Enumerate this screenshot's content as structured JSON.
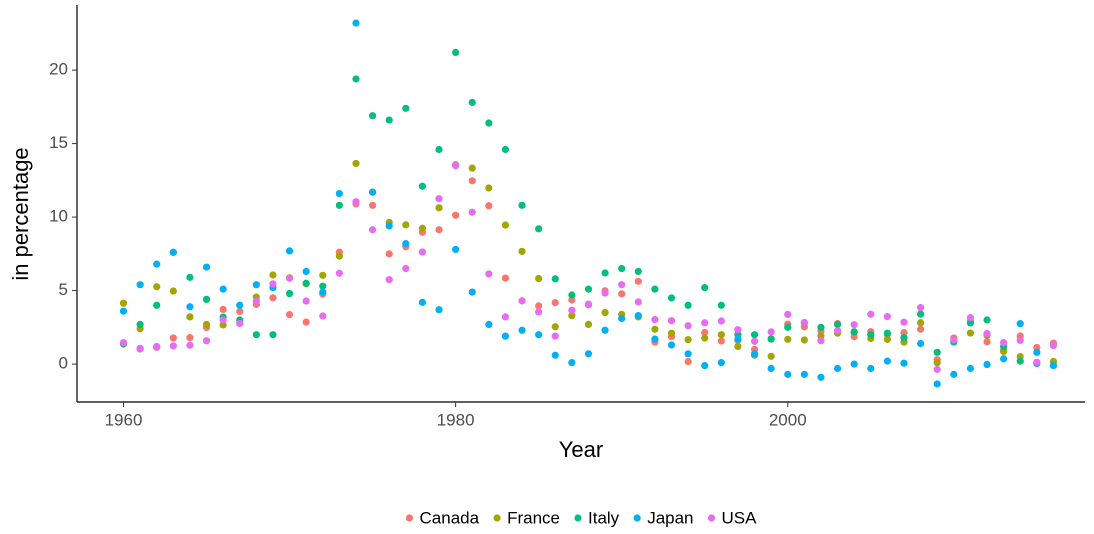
{
  "chart_data": {
    "type": "scatter",
    "xlabel": "Year",
    "ylabel": "in percentage",
    "x": [
      1960,
      1961,
      1962,
      1963,
      1964,
      1965,
      1966,
      1967,
      1968,
      1969,
      1970,
      1971,
      1972,
      1973,
      1974,
      1975,
      1976,
      1977,
      1978,
      1979,
      1980,
      1981,
      1982,
      1983,
      1984,
      1985,
      1986,
      1987,
      1988,
      1989,
      1990,
      1991,
      1992,
      1993,
      1994,
      1995,
      1996,
      1997,
      1998,
      1999,
      2000,
      2001,
      2002,
      2003,
      2004,
      2005,
      2006,
      2007,
      2008,
      2009,
      2010,
      2011,
      2012,
      2013,
      2014,
      2015,
      2016
    ],
    "series": [
      {
        "name": "Canada",
        "color": "#F8766D",
        "values": [
          1.36,
          1.02,
          1.14,
          1.78,
          1.8,
          2.49,
          3.72,
          3.58,
          4.06,
          4.51,
          3.37,
          2.86,
          4.76,
          7.62,
          10.9,
          10.8,
          7.5,
          7.98,
          8.97,
          9.14,
          10.13,
          12.47,
          10.77,
          5.85,
          4.3,
          3.96,
          4.18,
          4.36,
          4.03,
          4.99,
          4.78,
          5.63,
          1.49,
          1.87,
          0.17,
          2.15,
          1.57,
          1.62,
          1.0,
          1.73,
          2.72,
          2.53,
          2.26,
          2.76,
          1.86,
          2.21,
          2.0,
          2.14,
          2.37,
          0.3,
          1.78,
          2.91,
          1.52,
          0.94,
          1.91,
          1.13,
          1.43
        ]
      },
      {
        "name": "France",
        "color": "#A3A500",
        "values": [
          4.14,
          2.4,
          5.26,
          4.97,
          3.21,
          2.7,
          2.66,
          2.77,
          4.56,
          6.06,
          5.87,
          5.47,
          6.04,
          7.35,
          13.65,
          11.69,
          9.64,
          9.47,
          9.24,
          10.63,
          13.56,
          13.33,
          11.98,
          9.46,
          7.67,
          5.82,
          2.54,
          3.29,
          2.7,
          3.5,
          3.38,
          3.21,
          2.37,
          2.1,
          1.66,
          1.77,
          2.0,
          1.2,
          0.6,
          0.53,
          1.68,
          1.64,
          1.92,
          2.1,
          2.14,
          1.74,
          1.68,
          1.49,
          2.81,
          0.09,
          1.53,
          2.11,
          1.95,
          0.86,
          0.51,
          0.04,
          0.18
        ]
      },
      {
        "name": "Italy",
        "color": "#00BF7D",
        "values": [
          1.4,
          2.7,
          4.0,
          7.6,
          5.9,
          4.4,
          3.2,
          3.0,
          2.0,
          2.0,
          4.8,
          5.5,
          5.3,
          10.8,
          19.4,
          16.9,
          16.6,
          17.4,
          12.1,
          14.6,
          21.2,
          17.8,
          16.4,
          14.6,
          10.8,
          9.2,
          5.8,
          4.7,
          5.1,
          6.2,
          6.5,
          6.3,
          5.1,
          4.5,
          4.0,
          5.2,
          4.0,
          2.0,
          2.0,
          1.7,
          2.5,
          2.8,
          2.5,
          2.7,
          2.2,
          2.0,
          2.1,
          1.8,
          3.4,
          0.8,
          1.5,
          2.8,
          3.0,
          1.2,
          0.2,
          0.04,
          -0.09
        ]
      },
      {
        "name": "Japan",
        "color": "#00B0F6",
        "values": [
          3.6,
          5.4,
          6.8,
          7.6,
          3.9,
          6.6,
          5.1,
          4.0,
          5.4,
          5.2,
          7.7,
          6.3,
          4.9,
          11.6,
          23.2,
          11.7,
          9.4,
          8.2,
          4.2,
          3.7,
          7.8,
          4.9,
          2.7,
          1.9,
          2.3,
          2.0,
          0.6,
          0.1,
          0.7,
          2.3,
          3.1,
          3.3,
          1.7,
          1.3,
          0.7,
          -0.1,
          0.1,
          1.7,
          0.7,
          -0.3,
          -0.7,
          -0.7,
          -0.9,
          -0.3,
          0.0,
          -0.3,
          0.2,
          0.06,
          1.4,
          -1.35,
          -0.7,
          -0.3,
          -0.03,
          0.36,
          2.75,
          0.8,
          -0.1
        ]
      },
      {
        "name": "USA",
        "color": "#E76BF3",
        "values": [
          1.46,
          1.07,
          1.2,
          1.24,
          1.28,
          1.59,
          3.0,
          2.77,
          4.27,
          5.46,
          5.84,
          4.29,
          3.27,
          6.18,
          11.05,
          9.14,
          5.74,
          6.5,
          7.63,
          11.25,
          13.5,
          10.33,
          6.13,
          3.21,
          4.3,
          3.55,
          1.9,
          3.66,
          4.08,
          4.83,
          5.4,
          4.23,
          3.03,
          2.95,
          2.61,
          2.81,
          2.93,
          2.34,
          1.55,
          2.19,
          3.38,
          2.83,
          1.59,
          2.27,
          2.68,
          3.39,
          3.23,
          2.85,
          3.84,
          -0.36,
          1.64,
          3.16,
          2.07,
          1.46,
          1.62,
          0.12,
          1.26
        ]
      }
    ],
    "xlim": [
      1957.2,
      2017.9
    ],
    "ylim": [
      -2.58,
      24.43
    ],
    "xticks": [
      1960,
      1980,
      2000
    ],
    "yticks": [
      0,
      5,
      10,
      15,
      20
    ],
    "grid": false,
    "legend": "bottom"
  }
}
